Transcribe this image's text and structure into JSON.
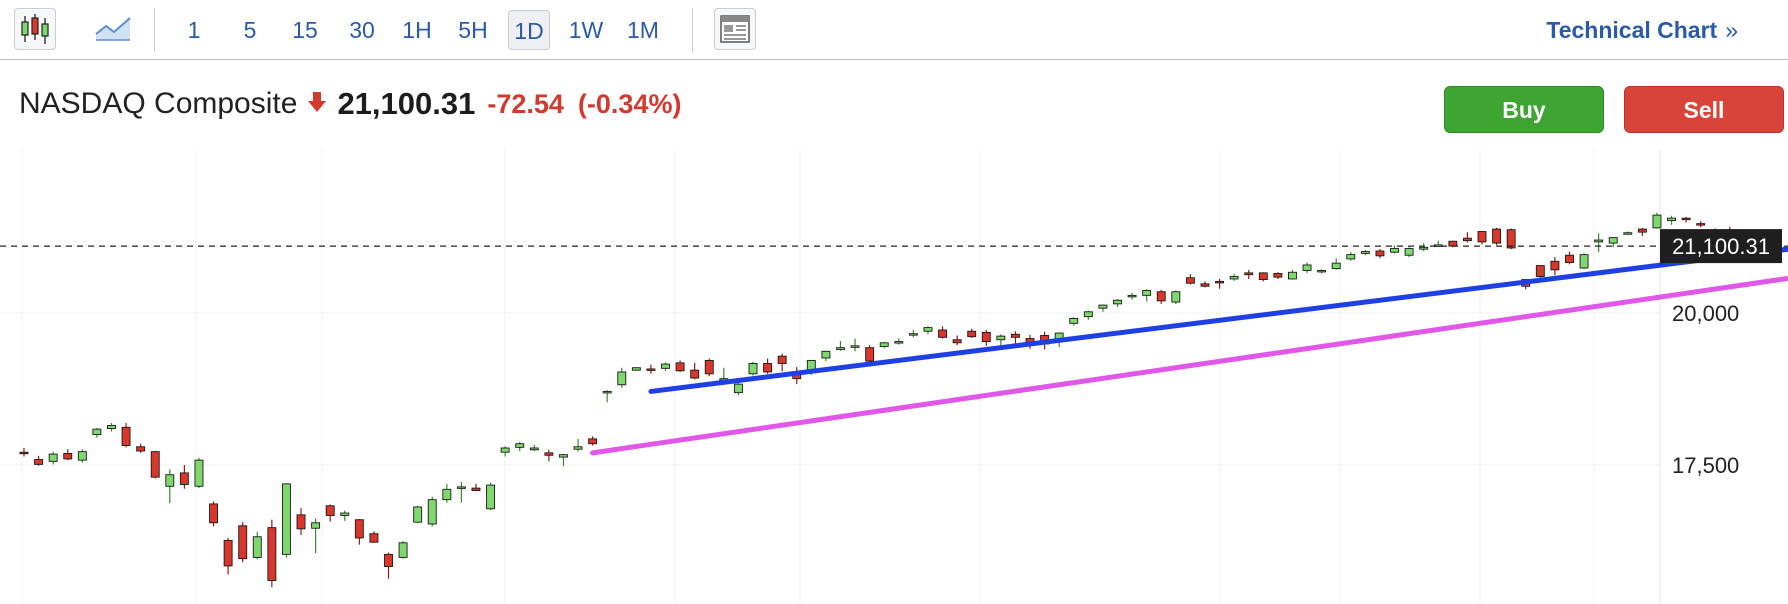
{
  "toolbar": {
    "intervals": [
      {
        "label": "1",
        "active": false
      },
      {
        "label": "5",
        "active": false
      },
      {
        "label": "15",
        "active": false
      },
      {
        "label": "30",
        "active": false
      },
      {
        "label": "1H",
        "active": false
      },
      {
        "label": "5H",
        "active": false
      },
      {
        "label": "1D",
        "active": true
      },
      {
        "label": "1W",
        "active": false
      },
      {
        "label": "1M",
        "active": false
      }
    ],
    "technical_chart_label": "Technical Chart",
    "technical_chart_chevron": "»",
    "icons": [
      "candlestick-icon",
      "area-chart-icon",
      "layout-icon"
    ]
  },
  "quote": {
    "name": "NASDAQ Composite",
    "direction": "down",
    "last": "21,100.31",
    "change": "-72.54",
    "change_pct": "(-0.34%)",
    "down_color": "#d23a2f"
  },
  "actions": {
    "buy_label": "Buy",
    "sell_label": "Sell",
    "buy_color": "#3ea432",
    "sell_color": "#d9443a"
  },
  "chart_data": {
    "type": "candlestick",
    "title": "",
    "price_axis_ticks": [
      17500,
      20000
    ],
    "price_axis_tick_labels": [
      "17,500",
      "20,000"
    ],
    "current_price": 21100.31,
    "current_price_label": "21,100.31",
    "grid": true,
    "up_color": "#7ed86e",
    "down_color": "#d9362c",
    "candles": [
      [
        17710,
        17780,
        17640,
        17700
      ],
      [
        17590,
        17650,
        17490,
        17510
      ],
      [
        17560,
        17720,
        17510,
        17680
      ],
      [
        17690,
        17760,
        17580,
        17600
      ],
      [
        17580,
        17760,
        17540,
        17720
      ],
      [
        18000,
        18110,
        17950,
        18090
      ],
      [
        18100,
        18190,
        18050,
        18150
      ],
      [
        18120,
        18190,
        17790,
        17820
      ],
      [
        17800,
        17850,
        17700,
        17730
      ],
      [
        17720,
        17730,
        17280,
        17300
      ],
      [
        17150,
        17430,
        16870,
        17340
      ],
      [
        17370,
        17500,
        17110,
        17180
      ],
      [
        17150,
        17620,
        17120,
        17580
      ],
      [
        16860,
        16900,
        16490,
        16550
      ],
      [
        16260,
        16300,
        15700,
        15840
      ],
      [
        16500,
        16560,
        15900,
        15960
      ],
      [
        15980,
        16400,
        15950,
        16320
      ],
      [
        16470,
        16600,
        15490,
        15600
      ],
      [
        16030,
        17200,
        15980,
        17190
      ],
      [
        16680,
        16790,
        16350,
        16450
      ],
      [
        16460,
        16620,
        16050,
        16550
      ],
      [
        16830,
        16850,
        16570,
        16670
      ],
      [
        16670,
        16750,
        16580,
        16710
      ],
      [
        16600,
        16610,
        16190,
        16300
      ],
      [
        16370,
        16410,
        16220,
        16230
      ],
      [
        16030,
        16060,
        15630,
        15830
      ],
      [
        15980,
        16250,
        15960,
        16220
      ],
      [
        16560,
        16830,
        16550,
        16810
      ],
      [
        16530,
        16980,
        16490,
        16930
      ],
      [
        16930,
        17190,
        16880,
        17100
      ],
      [
        17140,
        17220,
        16880,
        17140
      ],
      [
        17120,
        17190,
        17070,
        17080
      ],
      [
        16780,
        17210,
        16760,
        17170
      ],
      [
        17710,
        17810,
        17640,
        17780
      ],
      [
        17790,
        17880,
        17730,
        17850
      ],
      [
        17750,
        17830,
        17730,
        17780
      ],
      [
        17700,
        17750,
        17560,
        17660
      ],
      [
        17630,
        17680,
        17480,
        17670
      ],
      [
        17760,
        17930,
        17720,
        17800
      ],
      [
        17930,
        17970,
        17820,
        17850
      ],
      [
        18700,
        18730,
        18530,
        18710
      ],
      [
        18820,
        19100,
        18770,
        19030
      ],
      [
        19060,
        19110,
        19050,
        19100
      ],
      [
        19080,
        19150,
        19000,
        19060
      ],
      [
        19090,
        19190,
        19050,
        19160
      ],
      [
        19180,
        19220,
        19030,
        19050
      ],
      [
        19060,
        19180,
        18910,
        18930
      ],
      [
        19220,
        19250,
        18960,
        19000
      ],
      [
        18920,
        19100,
        18850,
        18920
      ],
      [
        18690,
        18880,
        18650,
        18830
      ],
      [
        19000,
        19200,
        18970,
        19170
      ],
      [
        19170,
        19250,
        19000,
        19030
      ],
      [
        19290,
        19330,
        19040,
        19170
      ],
      [
        19030,
        19110,
        18830,
        18920
      ],
      [
        19040,
        19230,
        18980,
        19220
      ],
      [
        19260,
        19380,
        19210,
        19370
      ],
      [
        19400,
        19540,
        19380,
        19430
      ],
      [
        19440,
        19580,
        19370,
        19460
      ],
      [
        19430,
        19470,
        19160,
        19210
      ],
      [
        19450,
        19520,
        19420,
        19510
      ],
      [
        19520,
        19580,
        19480,
        19530
      ],
      [
        19650,
        19720,
        19600,
        19660
      ],
      [
        19700,
        19780,
        19650,
        19760
      ],
      [
        19720,
        19780,
        19580,
        19600
      ],
      [
        19560,
        19630,
        19470,
        19510
      ],
      [
        19700,
        19740,
        19590,
        19610
      ],
      [
        19680,
        19720,
        19460,
        19530
      ],
      [
        19560,
        19650,
        19470,
        19620
      ],
      [
        19650,
        19700,
        19500,
        19600
      ],
      [
        19580,
        19640,
        19410,
        19520
      ],
      [
        19630,
        19690,
        19400,
        19490
      ],
      [
        19560,
        19680,
        19440,
        19670
      ],
      [
        19830,
        19930,
        19790,
        19910
      ],
      [
        19940,
        20040,
        19890,
        20020
      ],
      [
        20080,
        20140,
        20020,
        20130
      ],
      [
        20150,
        20230,
        20100,
        20210
      ],
      [
        20270,
        20330,
        20220,
        20290
      ],
      [
        20290,
        20390,
        20190,
        20370
      ],
      [
        20350,
        20380,
        20150,
        20200
      ],
      [
        20180,
        20370,
        20150,
        20350
      ],
      [
        20580,
        20640,
        20470,
        20490
      ],
      [
        20480,
        20520,
        20420,
        20440
      ],
      [
        20520,
        20560,
        20400,
        20500
      ],
      [
        20560,
        20640,
        20530,
        20600
      ],
      [
        20660,
        20710,
        20560,
        20630
      ],
      [
        20660,
        20670,
        20520,
        20550
      ],
      [
        20650,
        20670,
        20560,
        20590
      ],
      [
        20560,
        20710,
        20550,
        20670
      ],
      [
        20700,
        20830,
        20660,
        20790
      ],
      [
        20680,
        20720,
        20650,
        20700
      ],
      [
        20730,
        20900,
        20710,
        20820
      ],
      [
        20890,
        21000,
        20860,
        20960
      ],
      [
        20980,
        21040,
        20950,
        21010
      ],
      [
        21020,
        21050,
        20900,
        20940
      ],
      [
        21000,
        21110,
        20980,
        21060
      ],
      [
        20950,
        21080,
        20920,
        21060
      ],
      [
        21050,
        21150,
        21020,
        21080
      ],
      [
        21120,
        21190,
        21100,
        21120
      ],
      [
        21180,
        21190,
        21080,
        21100
      ],
      [
        21230,
        21330,
        21160,
        21190
      ],
      [
        21340,
        21350,
        21130,
        21170
      ],
      [
        21380,
        21400,
        21120,
        21150
      ],
      [
        21370,
        21390,
        21050,
        21070
      ],
      [
        20550,
        20560,
        20390,
        20440
      ],
      [
        20780,
        20790,
        20540,
        20600
      ],
      [
        20850,
        20920,
        20620,
        20710
      ],
      [
        20950,
        21010,
        20800,
        20830
      ],
      [
        20740,
        20980,
        20720,
        20960
      ],
      [
        21170,
        21310,
        21000,
        21200
      ],
      [
        21150,
        21250,
        21080,
        21240
      ],
      [
        21300,
        21340,
        21290,
        21320
      ],
      [
        21380,
        21400,
        21270,
        21330
      ],
      [
        21400,
        21650,
        21390,
        21610
      ],
      [
        21520,
        21600,
        21450,
        21560
      ],
      [
        21560,
        21580,
        21490,
        21550
      ],
      [
        21470,
        21510,
        21410,
        21450
      ],
      [
        21360,
        21390,
        21320,
        21340
      ],
      [
        21370,
        21420,
        21300,
        21310
      ],
      [
        21330,
        21370,
        21290,
        21320
      ],
      [
        21180,
        21240,
        21130,
        21150
      ],
      [
        21150,
        21170,
        21060,
        21110
      ],
      [
        21090,
        21130,
        21050,
        21100
      ],
      [
        21120,
        21120,
        21080,
        21110
      ],
      [
        21110,
        21150,
        21060,
        21100
      ]
    ],
    "trendlines": [
      {
        "color": "#1e3fe6",
        "start": [
          43,
          18710
        ],
        "end": [
          136,
          21500
        ]
      },
      {
        "color": "#e157e8",
        "start": [
          39,
          17700
        ],
        "end": [
          141,
          21270
        ]
      }
    ]
  }
}
